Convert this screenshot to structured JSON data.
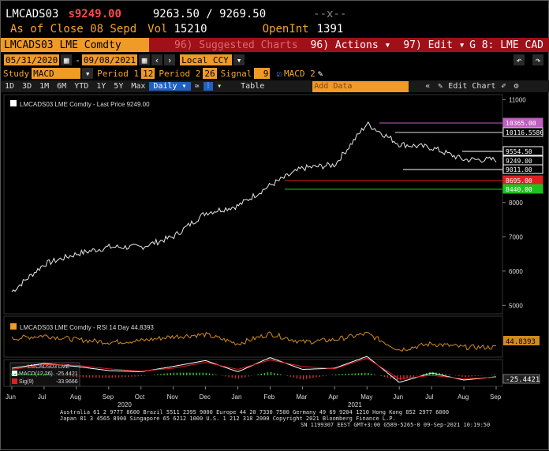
{
  "caption_text": "Suggest...y...ar...nt...",
  "quote": {
    "ticker": "LMCADS03",
    "last_price": "s9249.00",
    "bid_ask": "9263.50 / 9269.50",
    "x_marker": "--x--",
    "as_of": "As of Close 08 Sepd",
    "vol_label": "Vol",
    "vol": "15210",
    "openint_label": "OpenInt",
    "openint": "1391"
  },
  "titlebar": {
    "title": "LMCADS03 LME Comdty",
    "suggested_charts": "96) Suggested Charts",
    "actions": "96) Actions ▾",
    "edit": "97) Edit ▾",
    "right_label": "G 8: LME CAD"
  },
  "date_range": {
    "start": "05/31/2020",
    "end": "09/08/2021",
    "currency": "Local CCY"
  },
  "study": {
    "study_label": "Study",
    "study_value": "MACD",
    "period1_label": "Period 1",
    "period1": "12",
    "period2_label": "Period 2",
    "period2": "26",
    "signal_label": "Signal",
    "signal": "9",
    "macd_checkbox": "MACD 2"
  },
  "toolbar": {
    "periods": [
      "1D",
      "3D",
      "1M",
      "6M",
      "YTD",
      "1Y",
      "5Y",
      "Max"
    ],
    "frequency": "Daily ▾",
    "table": "Table",
    "add_data": "Add Data",
    "edit_chart": "Edit Chart"
  },
  "chart_data": [
    {
      "type": "line",
      "title": "LMCADS03 LME Comdty - Last Price 9249.00",
      "x": [
        "2020-06",
        "2020-07",
        "2020-08",
        "2020-09",
        "2020-10",
        "2020-11",
        "2020-12",
        "2021-01",
        "2021-02",
        "2021-03",
        "2021-04",
        "2021-05",
        "2021-06",
        "2021-07",
        "2021-08",
        "2021-09"
      ],
      "series": [
        {
          "name": "Last Price",
          "values": [
            5400,
            6200,
            6500,
            6700,
            6700,
            7000,
            7700,
            7900,
            8500,
            9000,
            9100,
            10300,
            9700,
            9600,
            9250,
            9249
          ]
        }
      ],
      "ylim": [
        4800,
        11100
      ],
      "yticks": [
        5000,
        6000,
        7000,
        8000,
        9000,
        10000,
        11000
      ],
      "price_labels": [
        {
          "text": "10365.00",
          "color": "#c060c0"
        },
        {
          "text": "10116.5586",
          "color": "#e0e0e0"
        },
        {
          "text": "9554.50",
          "color": "#ffffff"
        },
        {
          "text": "9249.00",
          "color": "#ffffff"
        },
        {
          "text": "9011.00",
          "color": "#ffffff"
        },
        {
          "text": "8695.00",
          "color": "#e02020"
        },
        {
          "text": "8440.00",
          "color": "#20c020"
        }
      ]
    },
    {
      "type": "line",
      "title": "LMCADS03 LME Comdty - RSI 14 Day 44.8393",
      "series": [
        {
          "name": "RSI 14 Day",
          "values": [
            62,
            68,
            60,
            55,
            58,
            66,
            70,
            52,
            72,
            55,
            60,
            72,
            40,
            52,
            45,
            44.8393
          ]
        }
      ],
      "last_label": "44.8393"
    },
    {
      "type": "line",
      "title": "LMCADS03 LME",
      "series": [
        {
          "name": "MACD(12,26)",
          "values": [
            120,
            200,
            150,
            80,
            60,
            150,
            250,
            60,
            300,
            100,
            120,
            320,
            -120,
            40,
            -80,
            -25.4421
          ]
        },
        {
          "name": "Sig(9)",
          "values": [
            100,
            180,
            170,
            110,
            70,
            120,
            220,
            100,
            260,
            150,
            110,
            290,
            -60,
            0,
            -60,
            -33.9666
          ]
        }
      ],
      "legend_values": [
        "-25.4421",
        "-33.9666"
      ],
      "last_label": "-25.4421"
    }
  ],
  "axis": {
    "months": [
      "Jun",
      "Jul",
      "Aug",
      "Sep",
      "Oct",
      "Nov",
      "Dec",
      "Jan",
      "Feb",
      "Mar",
      "Apr",
      "May",
      "Jun",
      "Jul",
      "Aug",
      "Sep"
    ],
    "year_2020": "2020",
    "year_2021": "2021"
  },
  "footer": {
    "line1": "Australia 61 2 9777 8600 Brazil 5511 2395 9000 Europe 44 20 7330 7500 Germany 49 69 9204 1210 Hong Kong 852 2977 6000",
    "line2": "Japan 81 3 4565 8900        Singapore 65 6212 1000        U.S. 1 212 318 2000        Copyright 2021 Bloomberg Finance L.P.",
    "line3": "SN 1199307 EEST GMT+3:00 G589-5265-0 09-Sep-2021 10:19:50"
  }
}
